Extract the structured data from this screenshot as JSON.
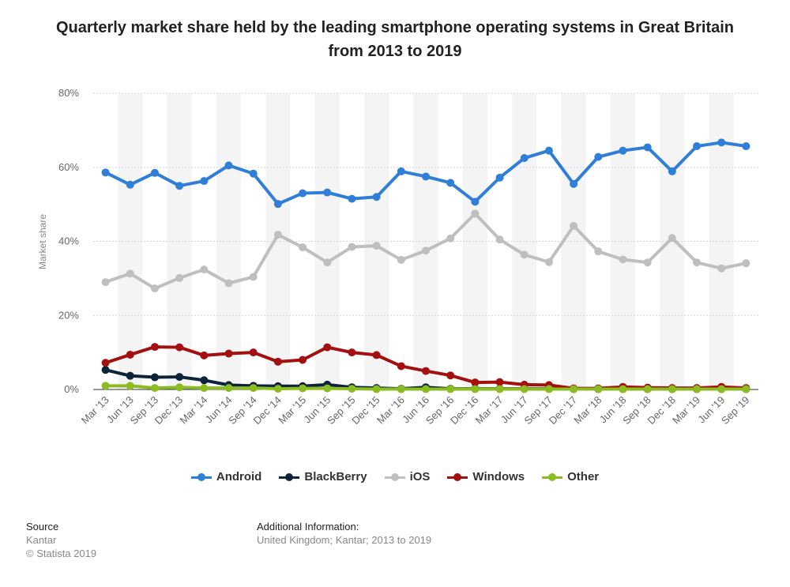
{
  "title": "Quarterly market share held by the leading smartphone operating systems in Great Britain from 2013 to 2019",
  "source": {
    "heading": "Source",
    "lines": [
      "Kantar",
      "© Statista 2019"
    ]
  },
  "additional_info": {
    "heading": "Additional Information:",
    "text": "United Kingdom; Kantar; 2013 to 2019"
  },
  "chart_data": {
    "type": "line",
    "title": "Quarterly market share held by the leading smartphone operating systems in Great Britain from 2013 to 2019",
    "xlabel": "",
    "ylabel": "Market share",
    "ylim": [
      0,
      80
    ],
    "yticks": [
      "0%",
      "20%",
      "40%",
      "60%",
      "80%"
    ],
    "grid": true,
    "legend": "bottom",
    "categories": [
      "Mar '13",
      "Jun '13",
      "Sep '13",
      "Dec '13",
      "Mar '14",
      "Jun '14",
      "Sep '14",
      "Dec '14",
      "Mar '15",
      "Jun '15",
      "Sep '15",
      "Dec '15",
      "Mar '16",
      "Jun '16",
      "Sep '16",
      "Dec '16",
      "Mar '17",
      "Jun '17",
      "Sep '17",
      "Dec '17",
      "Mar '18",
      "Jun '18",
      "Sep '18",
      "Dec '18",
      "Mar '19",
      "Jun '19",
      "Sep '19"
    ],
    "series": [
      {
        "name": "Android",
        "color": "#2f7ed8",
        "values": [
          58.6,
          55.3,
          58.5,
          55.0,
          56.3,
          60.5,
          58.3,
          50.1,
          53.0,
          53.2,
          51.5,
          52.0,
          58.9,
          57.5,
          55.8,
          50.7,
          57.2,
          62.5,
          64.5,
          55.5,
          62.8,
          64.5,
          65.4,
          58.9,
          65.7,
          66.7,
          65.7
        ]
      },
      {
        "name": "BlackBerry",
        "color": "#0d233a",
        "values": [
          5.3,
          3.7,
          3.3,
          3.4,
          2.5,
          1.2,
          1.0,
          0.9,
          0.9,
          1.3,
          0.6,
          0.4,
          0.2,
          0.6,
          0.2,
          0.2,
          0.2,
          0.2,
          0.2,
          0.1,
          0.1,
          0.1,
          0.1,
          0.1,
          0.1,
          0.1,
          0.1
        ]
      },
      {
        "name": "iOS",
        "color": "#bfbfbf",
        "values": [
          29.0,
          31.3,
          27.3,
          30.1,
          32.4,
          28.7,
          30.4,
          41.8,
          38.4,
          34.3,
          38.5,
          38.8,
          35.0,
          37.5,
          40.8,
          47.5,
          40.5,
          36.4,
          34.4,
          44.2,
          37.3,
          35.1,
          34.3,
          40.9,
          34.3,
          32.7,
          34.1
        ]
      },
      {
        "name": "Windows",
        "color": "#a40f0f",
        "values": [
          7.2,
          9.4,
          11.5,
          11.4,
          9.2,
          9.7,
          10.0,
          7.5,
          8.0,
          11.4,
          10.0,
          9.3,
          6.3,
          5.0,
          3.8,
          1.9,
          2.0,
          1.3,
          1.2,
          0.3,
          0.3,
          0.7,
          0.5,
          0.4,
          0.4,
          0.7,
          0.4
        ]
      },
      {
        "name": "Other",
        "color": "#8bbc21",
        "values": [
          1.0,
          1.0,
          0.4,
          0.6,
          0.4,
          0.4,
          0.4,
          0.2,
          0.3,
          0.3,
          0.2,
          0.1,
          0.1,
          0.1,
          0.1,
          0.1,
          0.1,
          0.1,
          0.1,
          0.1,
          0.1,
          0.1,
          0.1,
          0.1,
          0.1,
          0.1,
          0.1
        ]
      }
    ]
  }
}
